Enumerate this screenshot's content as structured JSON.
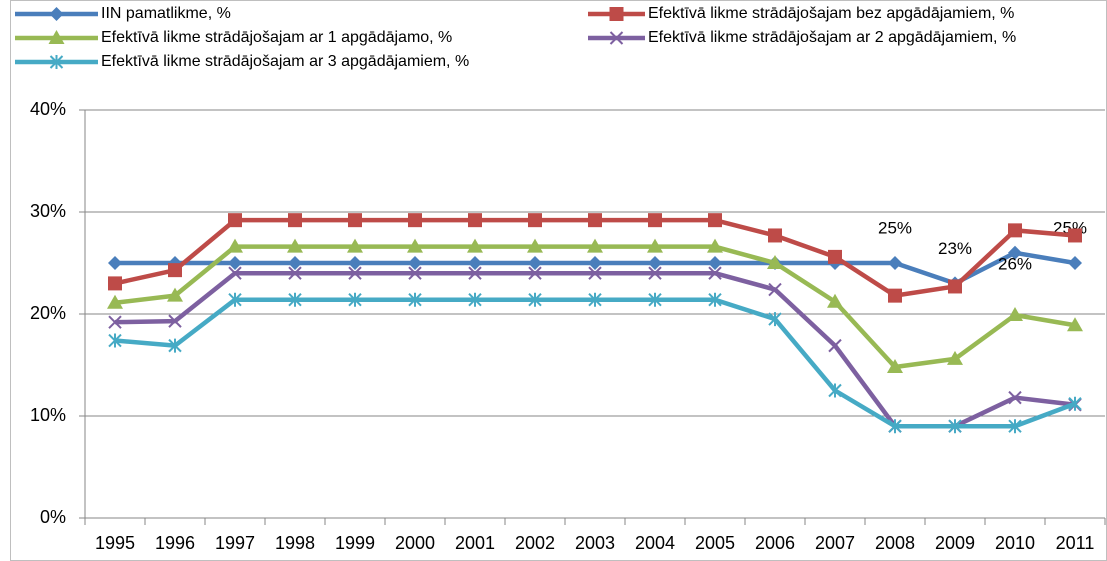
{
  "chart_data": {
    "type": "line",
    "categories": [
      "1995",
      "1996",
      "1997",
      "1998",
      "1999",
      "2000",
      "2001",
      "2002",
      "2003",
      "2004",
      "2005",
      "2006",
      "2007",
      "2008",
      "2009",
      "2010",
      "2011"
    ],
    "series": [
      {
        "name": "IIN pamatlikme, %",
        "color": "#4a7ebb",
        "marker": "diamond",
        "values": [
          25,
          25,
          25,
          25,
          25,
          25,
          25,
          25,
          25,
          25,
          25,
          25,
          25,
          25,
          23,
          26,
          25
        ],
        "value_labels": [
          null,
          null,
          null,
          null,
          null,
          null,
          null,
          null,
          null,
          null,
          null,
          null,
          null,
          "25%",
          "23%",
          "26%",
          "25%"
        ]
      },
      {
        "name": "Efektīvā likme strādājošajam bez apgādājamiem, %",
        "color": "#be4b48",
        "marker": "square",
        "values": [
          23,
          24.3,
          29.2,
          29.2,
          29.2,
          29.2,
          29.2,
          29.2,
          29.2,
          29.2,
          29.2,
          27.7,
          25.6,
          21.8,
          22.7,
          28.2,
          27.7
        ]
      },
      {
        "name": "Efektīvā likme strādājošajam ar 1 apgādājamo, %",
        "color": "#98b954",
        "marker": "triangle",
        "values": [
          21.1,
          21.8,
          26.6,
          26.6,
          26.6,
          26.6,
          26.6,
          26.6,
          26.6,
          26.6,
          26.6,
          25,
          21.2,
          14.8,
          15.6,
          19.9,
          18.9
        ]
      },
      {
        "name": "Efektīvā likme strādājošajam ar 2 apgādājamiem, %",
        "color": "#7d60a0",
        "marker": "x",
        "values": [
          19.2,
          19.3,
          24,
          24,
          24,
          24,
          24,
          24,
          24,
          24,
          24,
          22.4,
          16.9,
          9,
          9,
          11.8,
          11.1
        ]
      },
      {
        "name": "Efektīvā likme strādājošajam ar 3 apgādājamiem, %",
        "color": "#46aac5",
        "marker": "star",
        "values": [
          17.4,
          16.9,
          21.4,
          21.4,
          21.4,
          21.4,
          21.4,
          21.4,
          21.4,
          21.4,
          21.4,
          19.5,
          12.5,
          9,
          9,
          9,
          11.2
        ]
      }
    ],
    "ylim": [
      0,
      40
    ],
    "yticks": [
      {
        "value": 0,
        "label": "0%"
      },
      {
        "value": 10,
        "label": "10%"
      },
      {
        "value": 20,
        "label": "20%"
      },
      {
        "value": 30,
        "label": "30%"
      },
      {
        "value": 40,
        "label": "40%"
      }
    ],
    "grid": true,
    "legend": "top"
  }
}
